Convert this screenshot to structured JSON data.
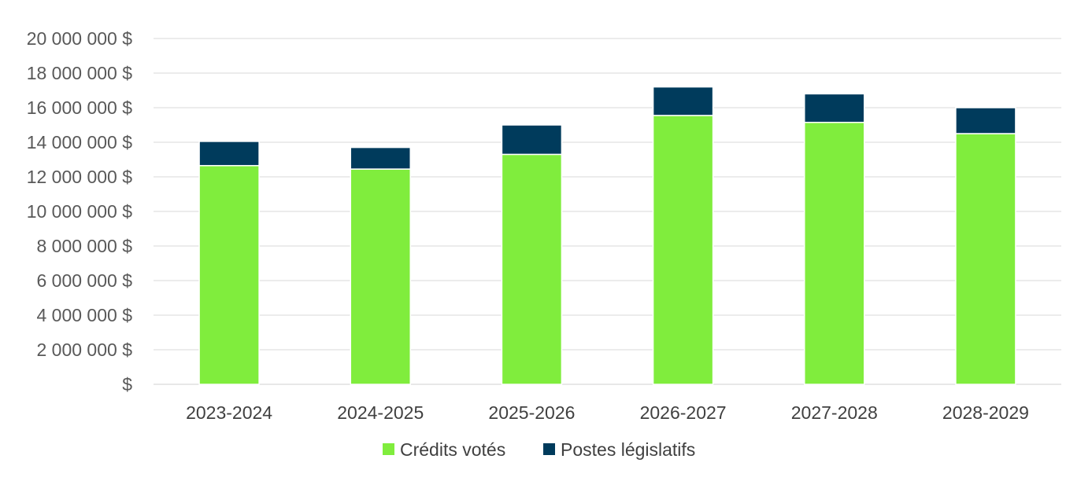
{
  "chart_data": {
    "type": "bar",
    "stacked": true,
    "title": "",
    "xlabel": "",
    "ylabel": "",
    "ylim": [
      0,
      20000000
    ],
    "y_ticks": [
      0,
      2000000,
      4000000,
      6000000,
      8000000,
      10000000,
      12000000,
      14000000,
      16000000,
      18000000,
      20000000
    ],
    "y_tick_labels": [
      "$",
      "2 000 000 $",
      "4 000 000 $",
      "6 000 000 $",
      "8 000 000 $",
      "10 000 000 $",
      "12 000 000 $",
      "14 000 000 $",
      "16 000 000 $",
      "18 000 000 $",
      "20 000 000 $"
    ],
    "grid": true,
    "legend_position": "bottom",
    "categories": [
      "2023-2024",
      "2024-2025",
      "2025-2026",
      "2026-2027",
      "2027-2028",
      "2028-2029"
    ],
    "series": [
      {
        "name": "Crédits votés",
        "color": "#80ED3D",
        "values": [
          12650000,
          12450000,
          13300000,
          15550000,
          15150000,
          14500000
        ]
      },
      {
        "name": "Postes législatifs",
        "color": "#003B5C",
        "values": [
          1400000,
          1250000,
          1700000,
          1650000,
          1650000,
          1500000
        ]
      }
    ]
  }
}
